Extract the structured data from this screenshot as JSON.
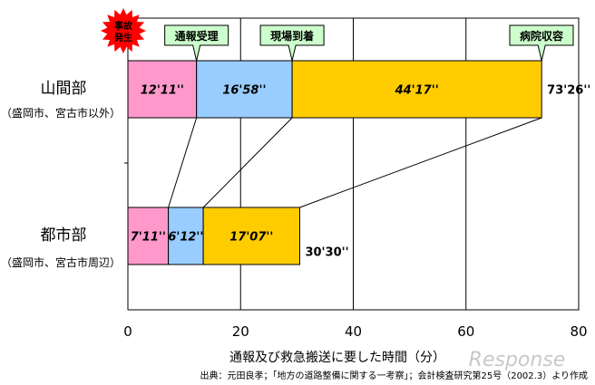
{
  "chart_data": {
    "type": "bar",
    "orientation": "horizontal",
    "stacked": true,
    "xlim": [
      0,
      80
    ],
    "xticks": [
      0,
      20,
      40,
      60,
      80
    ],
    "xlabel": "通報及び救急搬送に要した時間（分）",
    "grid": true,
    "categories": [
      {
        "name": "山間部",
        "sub": "（盛岡市、宮古市以外）"
      },
      {
        "name": "都市部",
        "sub": "（盛岡市、宮古市周辺）"
      }
    ],
    "series": [
      {
        "color": "#ff99cc",
        "values": [
          12.18,
          7.18
        ],
        "labels": [
          "12'11''",
          "7'11''"
        ]
      },
      {
        "color": "#99ccff",
        "values": [
          16.97,
          6.2
        ],
        "labels": [
          "16'58''",
          "6'12''"
        ]
      },
      {
        "color": "#ffcc00",
        "values": [
          44.28,
          17.12
        ],
        "labels": [
          "44'17''",
          "17'07''"
        ]
      }
    ],
    "totals": [
      "73'26''",
      "30'30''"
    ],
    "annotations": [
      {
        "text": "事故発生",
        "x": 0
      },
      {
        "text": "通報受理",
        "x": 12.18
      },
      {
        "text": "現場到着",
        "x": 29.15
      },
      {
        "text": "病院収容",
        "x": 73.43
      }
    ],
    "source": "出典：元田良孝；「地方の道路整備に関する一考察」；会計検査研究第25号（2002.3）より作成"
  },
  "colors": {
    "grid": "#000000",
    "line": "#000000",
    "callout_fill": "#ccffcc",
    "star_fill": "#ff0000"
  },
  "watermark": "Response"
}
